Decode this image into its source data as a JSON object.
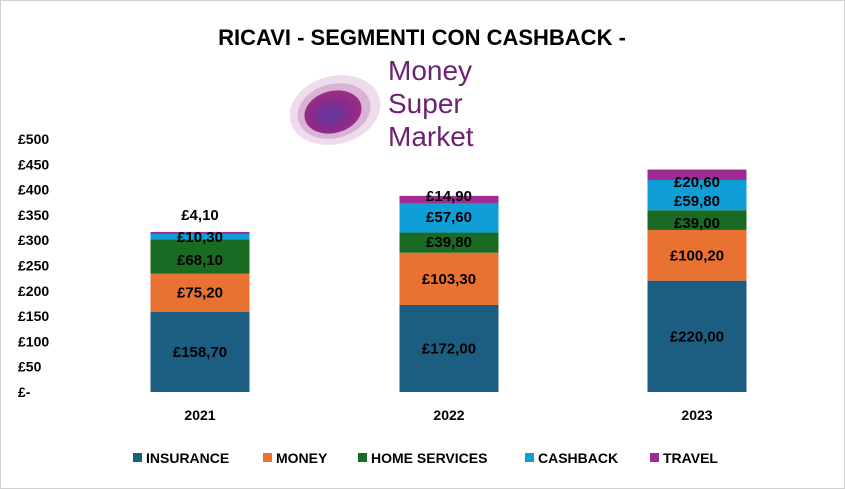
{
  "chart_data": {
    "type": "bar",
    "stacked": true,
    "title": "RICAVI - SEGMENTI CON CASHBACK -",
    "logo_text": [
      "Money",
      "Super",
      "Market"
    ],
    "categories": [
      "2021",
      "2022",
      "2023"
    ],
    "series": [
      {
        "name": "INSURANCE",
        "color": "#1B5E82",
        "values": [
          158.7,
          172.0,
          220.0
        ],
        "labels": [
          "£158,70",
          "£172,00",
          "£220,00"
        ]
      },
      {
        "name": "MONEY",
        "color": "#E97132",
        "values": [
          75.2,
          103.3,
          100.2
        ],
        "labels": [
          "£75,20",
          "£103,30",
          "£100,20"
        ]
      },
      {
        "name": "HOME SERVICES",
        "color": "#196B24",
        "values": [
          68.1,
          39.8,
          39.0
        ],
        "labels": [
          "£68,10",
          "£39,80",
          "£39,00"
        ]
      },
      {
        "name": "CASHBACK",
        "color": "#0F9ED5",
        "values": [
          10.3,
          57.6,
          59.8
        ],
        "labels": [
          "£10,30",
          "£57,60",
          "£59,80"
        ]
      },
      {
        "name": "TRAVEL",
        "color": "#A02B93",
        "values": [
          4.1,
          14.9,
          20.6
        ],
        "labels": [
          "£4,10",
          "£14,90",
          "£20,60"
        ]
      }
    ],
    "ylim": [
      0,
      500
    ],
    "yticks": [
      0,
      50,
      100,
      150,
      200,
      250,
      300,
      350,
      400,
      450,
      500
    ],
    "ytick_labels": [
      "£-",
      "£50",
      "£100",
      "£150",
      "£200",
      "£250",
      "£300",
      "£350",
      "£400",
      "£450",
      "£500"
    ],
    "xlabel": "",
    "ylabel": "",
    "grid": false,
    "legend_position": "bottom"
  }
}
